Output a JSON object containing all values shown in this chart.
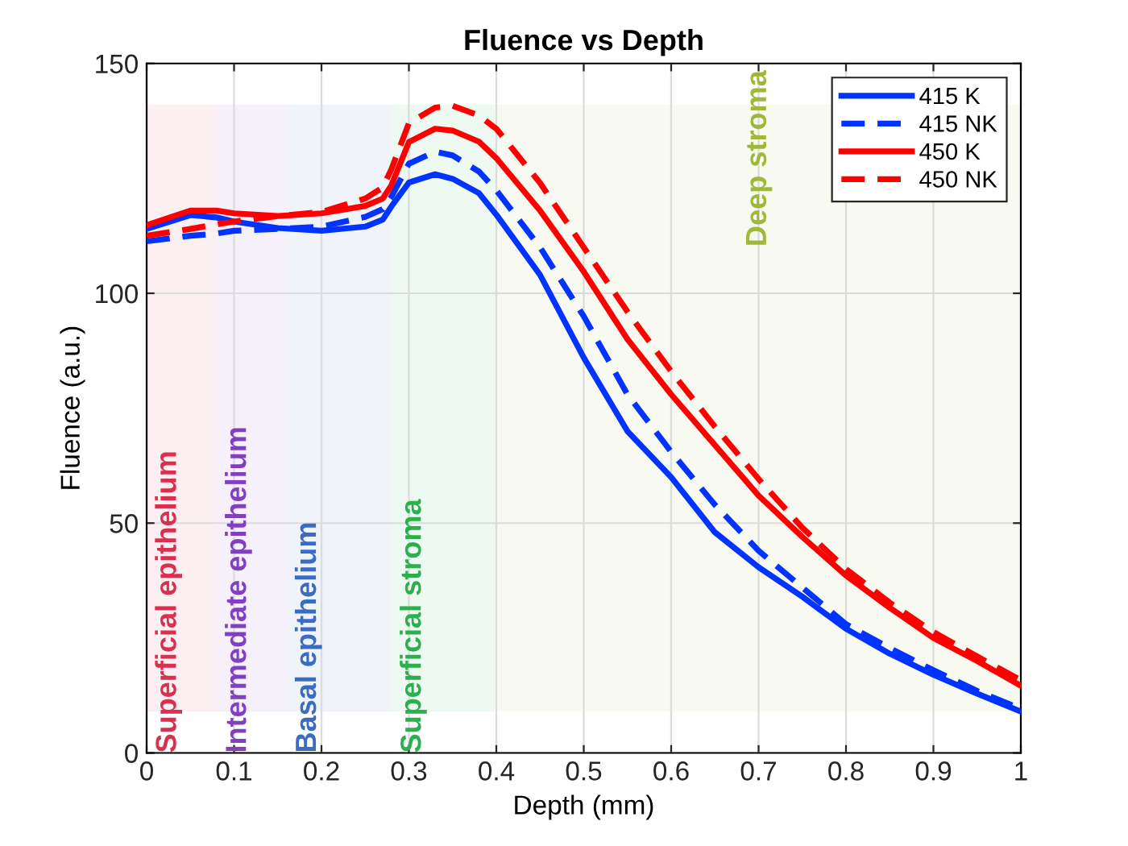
{
  "chart_data": {
    "type": "line",
    "title": "Fluence vs Depth",
    "xlabel": "Depth (mm)",
    "ylabel": "Fluence (a.u.)",
    "x": [
      0,
      0.05,
      0.08,
      0.1,
      0.15,
      0.2,
      0.25,
      0.27,
      0.28,
      0.3,
      0.33,
      0.35,
      0.38,
      0.4,
      0.45,
      0.5,
      0.55,
      0.6,
      0.65,
      0.7,
      0.75,
      0.8,
      0.85,
      0.9,
      0.95,
      1.0
    ],
    "series": [
      {
        "name": "415 K",
        "color": "#0033ff",
        "line_style": "solid",
        "values": [
          114,
          117,
          116.5,
          115.6,
          114.2,
          113.6,
          114.5,
          116,
          118.9,
          124.1,
          125.9,
          124.9,
          121.8,
          117.1,
          104,
          86,
          70,
          60,
          48,
          40.4,
          34,
          27,
          21.6,
          17,
          12.9,
          9
        ]
      },
      {
        "name": "415 NK",
        "color": "#0033ff",
        "line_style": "dashed",
        "values": [
          111.3,
          112.5,
          113,
          113.6,
          114,
          114.5,
          116.6,
          118.3,
          121,
          128.2,
          130.8,
          130,
          126.5,
          122.4,
          110,
          95,
          78,
          65.5,
          54,
          44,
          36,
          28,
          22.8,
          18,
          13.5,
          9.6
        ]
      },
      {
        "name": "450 K",
        "color": "#ff0000",
        "line_style": "solid",
        "values": [
          114.8,
          118,
          118,
          117.4,
          116.8,
          117.4,
          119,
          120.6,
          123.5,
          132.9,
          135.8,
          135.4,
          133,
          129.4,
          118,
          104.7,
          90,
          78,
          67,
          56,
          47,
          38.6,
          31.6,
          25,
          20,
          14.6
        ]
      },
      {
        "name": "450 NK",
        "color": "#ff0000",
        "line_style": "dashed",
        "values": [
          112.5,
          114,
          115,
          115.6,
          116.8,
          117.7,
          120.6,
          123,
          127,
          137,
          140.4,
          140.8,
          138.7,
          135.8,
          124,
          110,
          96,
          83,
          71,
          59.6,
          49,
          40,
          32.7,
          26.3,
          21,
          15.8
        ]
      }
    ],
    "xlim": [
      0,
      1
    ],
    "xticks": [
      0,
      0.1,
      0.2,
      0.3,
      0.4,
      0.5,
      0.6,
      0.7,
      0.8,
      0.9,
      1
    ],
    "ylim": [
      0,
      150
    ],
    "yticks": [
      0,
      50,
      100,
      150
    ],
    "bands": [
      {
        "axis": "x",
        "from": 0,
        "to": 0.08,
        "label": "Superficial epithelium",
        "color": "#d9304f"
      },
      {
        "axis": "x",
        "from": 0.08,
        "to": 0.16,
        "label": "Intermediate epithelium",
        "color": "#8040c0"
      },
      {
        "axis": "x",
        "from": 0.16,
        "to": 0.28,
        "label": "Basal epithelium",
        "color": "#3a6cc4"
      },
      {
        "axis": "x",
        "from": 0.28,
        "to": 0.4,
        "label": "Superficial stroma",
        "color": "#2bb050"
      },
      {
        "axis": "x",
        "from": 0.4,
        "to": 1.0,
        "label": "Deep stroma",
        "color": "#a0b83a"
      }
    ],
    "grid": true,
    "legend": "top right",
    "marker": "none"
  }
}
